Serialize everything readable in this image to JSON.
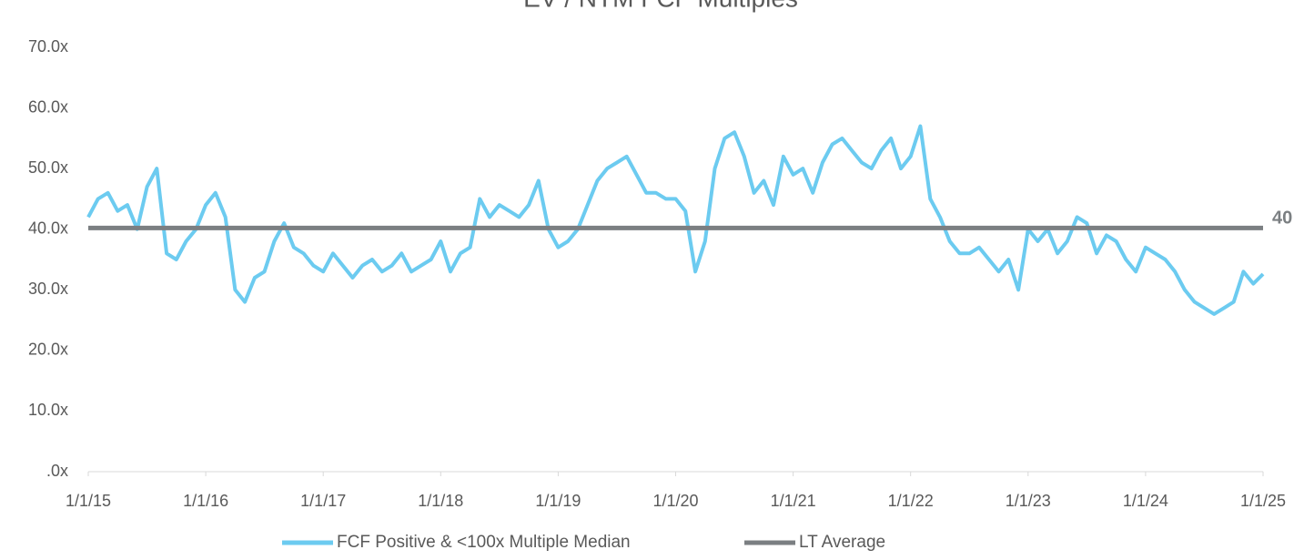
{
  "chart_data": {
    "type": "line",
    "title": "EV / NTM FCF Multiples",
    "ylim": [
      0,
      70
    ],
    "yticks": [
      {
        "value": 0,
        "label": ".0x"
      },
      {
        "value": 10,
        "label": "10.0x"
      },
      {
        "value": 20,
        "label": "20.0x"
      },
      {
        "value": 30,
        "label": "30.0x"
      },
      {
        "value": 40,
        "label": "40.0x"
      },
      {
        "value": 50,
        "label": "50.0x"
      },
      {
        "value": 60,
        "label": "60.0x"
      },
      {
        "value": 70,
        "label": "70.0x"
      }
    ],
    "xlim": [
      2015,
      2025
    ],
    "xticks": [
      {
        "value": 2015,
        "label": "1/1/15"
      },
      {
        "value": 2016,
        "label": "1/1/16"
      },
      {
        "value": 2017,
        "label": "1/1/17"
      },
      {
        "value": 2018,
        "label": "1/1/18"
      },
      {
        "value": 2019,
        "label": "1/1/19"
      },
      {
        "value": 2020,
        "label": "1/1/20"
      },
      {
        "value": 2021,
        "label": "1/1/21"
      },
      {
        "value": 2022,
        "label": "1/1/22"
      },
      {
        "value": 2023,
        "label": "1/1/23"
      },
      {
        "value": 2024,
        "label": "1/1/24"
      },
      {
        "value": 2025,
        "label": "1/1/25"
      }
    ],
    "grid": false,
    "legend": "bottom",
    "series": [
      {
        "name": "FCF Positive & <100x Multiple Median",
        "color": "#6ccbf0",
        "x": [
          2015,
          2015.083,
          2015.167,
          2015.25,
          2015.333,
          2015.417,
          2015.5,
          2015.583,
          2015.667,
          2015.75,
          2015.833,
          2015.917,
          2016,
          2016.083,
          2016.167,
          2016.25,
          2016.333,
          2016.417,
          2016.5,
          2016.583,
          2016.667,
          2016.75,
          2016.833,
          2016.917,
          2017,
          2017.083,
          2017.167,
          2017.25,
          2017.333,
          2017.417,
          2017.5,
          2017.583,
          2017.667,
          2017.75,
          2017.833,
          2017.917,
          2018,
          2018.083,
          2018.167,
          2018.25,
          2018.333,
          2018.417,
          2018.5,
          2018.583,
          2018.667,
          2018.75,
          2018.833,
          2018.917,
          2019,
          2019.083,
          2019.167,
          2019.25,
          2019.333,
          2019.417,
          2019.5,
          2019.583,
          2019.667,
          2019.75,
          2019.833,
          2019.917,
          2020,
          2020.083,
          2020.167,
          2020.25,
          2020.333,
          2020.417,
          2020.5,
          2020.583,
          2020.667,
          2020.75,
          2020.833,
          2020.917,
          2021,
          2021.083,
          2021.167,
          2021.25,
          2021.333,
          2021.417,
          2021.5,
          2021.583,
          2021.667,
          2021.75,
          2021.833,
          2021.917,
          2022,
          2022.083,
          2022.167,
          2022.25,
          2022.333,
          2022.417,
          2022.5,
          2022.583,
          2022.667,
          2022.75,
          2022.833,
          2022.917,
          2023,
          2023.083,
          2023.167,
          2023.25,
          2023.333,
          2023.417,
          2023.5,
          2023.583,
          2023.667,
          2023.75,
          2023.833,
          2023.917,
          2024,
          2024.083,
          2024.167,
          2024.25,
          2024.333,
          2024.417,
          2024.5,
          2024.583,
          2024.667,
          2024.75,
          2024.833,
          2024.917,
          2025
        ],
        "values": [
          42,
          45,
          46,
          43,
          44,
          40,
          47,
          50,
          36,
          35,
          38,
          40,
          44,
          46,
          42,
          30,
          28,
          32,
          33,
          38,
          41,
          37,
          36,
          34,
          33,
          36,
          34,
          32,
          34,
          35,
          33,
          34,
          36,
          33,
          34,
          35,
          38,
          33,
          36,
          37,
          45,
          42,
          44,
          43,
          42,
          44,
          48,
          40,
          37,
          38,
          40,
          44,
          48,
          50,
          51,
          52,
          49,
          46,
          46,
          45,
          45,
          43,
          33,
          38,
          50,
          55,
          56,
          52,
          46,
          48,
          44,
          52,
          49,
          50,
          46,
          51,
          54,
          55,
          53,
          51,
          50,
          53,
          55,
          50,
          52,
          57,
          45,
          42,
          38,
          36,
          36,
          37,
          35,
          33,
          35,
          30,
          40,
          38,
          40,
          36,
          38,
          42,
          41,
          36,
          39,
          38,
          35,
          33,
          37,
          36,
          35,
          33,
          30,
          28,
          27,
          26,
          27,
          28,
          33,
          31,
          32.6
        ]
      },
      {
        "name": "LT Average",
        "color": "#7b7f82",
        "x": [
          2015,
          2025
        ],
        "values": [
          40.2,
          40.2
        ],
        "value_labels": [
          null,
          "40"
        ]
      }
    ]
  }
}
